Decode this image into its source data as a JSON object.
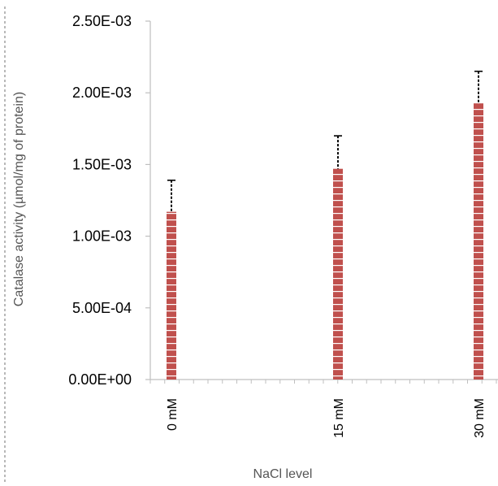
{
  "chart_data": {
    "type": "bar",
    "title": "",
    "xlabel": "NaCl level",
    "ylabel": "Catalase activity (µmol/mg of protein)",
    "categories": [
      "0 mM",
      "15 mM",
      "30 mM"
    ],
    "values": [
      0.00117,
      0.00147,
      0.00193
    ],
    "error": [
      0.00022,
      0.00023,
      0.00022
    ],
    "ylim": [
      0,
      0.0025
    ],
    "yticks": [
      0,
      0.0005,
      0.001,
      0.0015,
      0.002,
      0.0025
    ],
    "ytick_labels": [
      "0.00E+00",
      "5.00E-04",
      "1.00E-03",
      "1.50E-03",
      "2.00E-03",
      "2.50E-03"
    ],
    "grid": false,
    "legend": "none",
    "colors": {
      "bar": "#c0504d",
      "bar_stripe": "#ffffff",
      "error": "#000000",
      "axis": "#bfbfbf",
      "axis_title": "#555555"
    }
  }
}
